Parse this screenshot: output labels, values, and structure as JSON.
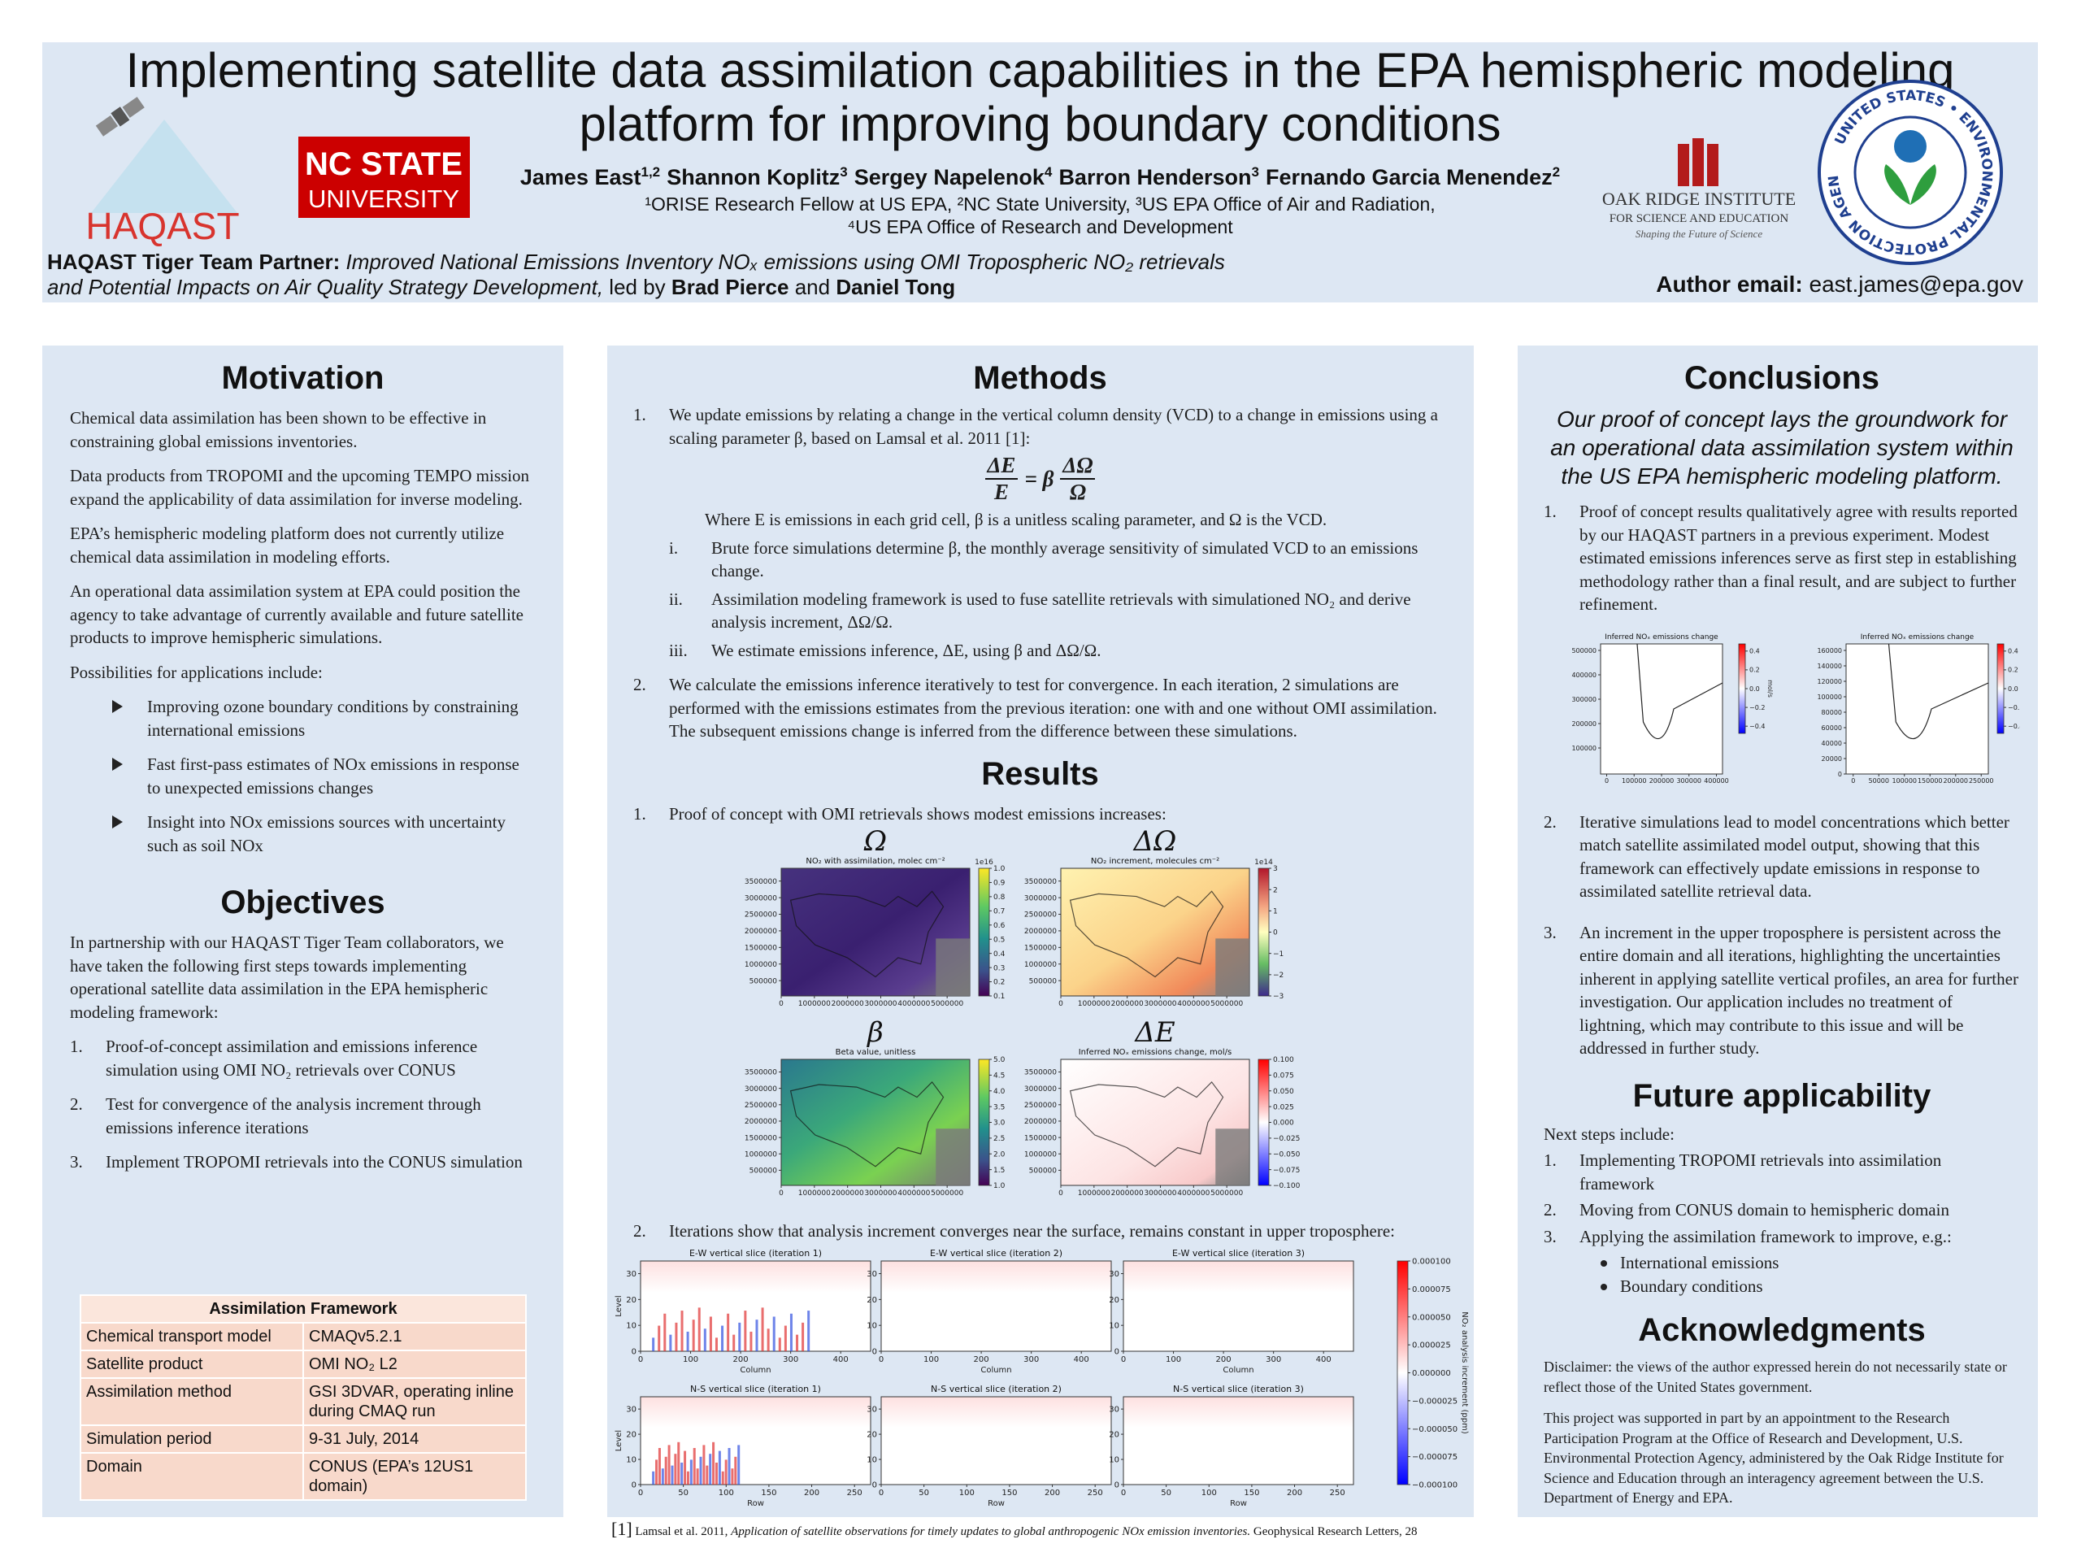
{
  "header": {
    "title_line1": "Implementing satellite data assimilation capabilities in the EPA hemispheric modeling",
    "title_line2": "platform for improving boundary conditions",
    "authors": [
      {
        "name": "James East",
        "sup": "1,2"
      },
      {
        "name": "Shannon Koplitz",
        "sup": "3"
      },
      {
        "name": "Sergey Napelenok",
        "sup": "4"
      },
      {
        "name": "Barron Henderson",
        "sup": "3"
      },
      {
        "name": "Fernando Garcia Menendez",
        "sup": "2"
      }
    ],
    "affiliations_line1": "¹ORISE Research Fellow at US EPA, ²NC State University, ³US EPA Office of Air and Radiation,",
    "affiliations_line2": "⁴US EPA Office of Research and Development",
    "partner_label": "HAQAST Tiger Team Partner:",
    "partner_project_line1": "Improved National Emissions Inventory NOₓ emissions using OMI Tropospheric NO₂ retrievals",
    "partner_project_line2": "and Potential Impacts on Air Quality Strategy Development,",
    "led_by": "led by",
    "lead1": "Brad Pierce",
    "and": "and",
    "lead2": "Daniel Tong",
    "email_label": "Author email:",
    "email": "east.james@epa.gov"
  },
  "logos": {
    "haqast": "HAQAST",
    "ncstate_line1": "NC STATE",
    "ncstate_line2": "UNIVERSITY",
    "orise_line1": "OAK RIDGE INSTITUTE",
    "orise_line2": "FOR SCIENCE AND EDUCATION",
    "orise_tagline": "Shaping the Future of Science",
    "epa_ring": "UNITED STATES • ENVIRONMENTAL PROTECTION AGENCY"
  },
  "motivation": {
    "heading": "Motivation",
    "paragraphs": [
      "Chemical data assimilation has been shown to be effective in constraining global emissions inventories.",
      "Data products from TROPOMI and the upcoming TEMPO mission expand the applicability of data assimilation for inverse modeling.",
      "EPA’s hemispheric modeling platform does not currently utilize chemical data assimilation in modeling efforts.",
      "An operational data assimilation system at EPA could position the agency to take advantage of currently available and future satellite products to improve hemispheric simulations.",
      "Possibilities for applications include:"
    ],
    "bullets": [
      "Improving ozone boundary conditions by constraining international emissions",
      "Fast first-pass estimates of NOx emissions in response to unexpected emissions changes",
      "Insight into NOx emissions sources with uncertainty such as soil NOx"
    ]
  },
  "objectives": {
    "heading": "Objectives",
    "intro": "In partnership with our HAQAST Tiger Team collaborators, we have taken the following first steps towards implementing operational satellite data assimilation in the EPA hemispheric modeling framework:",
    "items": [
      {
        "num": "1.",
        "text": "Proof-of-concept assimilation and emissions inference simulation using OMI NO₂ retrievals over CONUS"
      },
      {
        "num": "2.",
        "text": "Test for convergence of the analysis increment through emissions inference iterations"
      },
      {
        "num": "3.",
        "text": "Implement TROPOMI retrievals into the CONUS simulation"
      }
    ]
  },
  "table": {
    "title": "Assimilation Framework",
    "rows": [
      [
        "Chemical transport model",
        "CMAQv5.2.1"
      ],
      [
        "Satellite product",
        "OMI NO₂ L2"
      ],
      [
        "Assimilation method",
        "GSI 3DVAR, operating inline during CMAQ run"
      ],
      [
        "Simulation period",
        "9-31 July, 2014"
      ],
      [
        "Domain",
        "CONUS (EPA’s 12US1 domain)"
      ]
    ]
  },
  "methods": {
    "heading": "Methods",
    "step1": {
      "num": "1.",
      "text": "We update emissions by relating a change in the vertical column density (VCD) to a change in emissions using a scaling parameter β, based on Lamsal et al. 2011 [1]:"
    },
    "equation": {
      "lhs_num": "ΔE",
      "lhs_den": "E",
      "middle": "= β",
      "rhs_num": "ΔΩ",
      "rhs_den": "Ω"
    },
    "where": "Where E is emissions in each grid cell, β is a unitless scaling parameter, and Ω is the VCD.",
    "substeps": [
      {
        "num": "i.",
        "text": "Brute force simulations determine β, the monthly average sensitivity of simulated VCD to an emissions change."
      },
      {
        "num": "ii.",
        "text": "Assimilation modeling framework is used to fuse satellite retrievals with simulationed NO₂ and derive analysis increment, ΔΩ/Ω."
      },
      {
        "num": "iii.",
        "text": "We estimate emissions inference, ΔE, using β and ΔΩ/Ω."
      }
    ],
    "step2": {
      "num": "2.",
      "text": "We calculate the emissions inference iteratively to test for convergence. In each iteration, 2 simulations are performed with the emissions estimates from the previous iteration: one with and one without OMI assimilation. The subsequent emissions change is inferred from the difference between these simulations."
    }
  },
  "results": {
    "heading": "Results",
    "step1": {
      "num": "1.",
      "text": "Proof of concept with OMI retrievals shows modest emissions increases:"
    },
    "map_xticks": [
      "0",
      "1000000",
      "2000000",
      "3000000",
      "4000000",
      "5000000"
    ],
    "map_yticks": [
      "500000",
      "1000000",
      "1500000",
      "2000000",
      "2500000",
      "3000000",
      "3500000"
    ],
    "panels": [
      {
        "symbol": "Ω",
        "title": "NO₂ with assimilation, molec cm⁻²",
        "cbar_exp": "1e16",
        "cbar": [
          "1.0",
          "0.9",
          "0.8",
          "0.7",
          "0.6",
          "0.5",
          "0.4",
          "0.3",
          "0.2",
          "0.1"
        ]
      },
      {
        "symbol": "ΔΩ",
        "title": "NO₂ increment, molecules cm⁻²",
        "cbar_exp": "1e14",
        "cbar": [
          "3",
          "2",
          "1",
          "0",
          "−1",
          "−2",
          "−3"
        ]
      },
      {
        "symbol": "β",
        "title": "Beta value, unitless",
        "cbar": [
          "5.0",
          "4.5",
          "4.0",
          "3.5",
          "3.0",
          "2.5",
          "2.0",
          "1.5",
          "1.0"
        ]
      },
      {
        "symbol": "ΔE",
        "title": "Inferred NOₓ emissions change, mol/s",
        "cbar": [
          "0.100",
          "0.075",
          "0.050",
          "0.025",
          "0.000",
          "−0.025",
          "−0.050",
          "−0.075",
          "−0.100"
        ]
      }
    ],
    "step2": {
      "num": "2.",
      "text": "Iterations show that analysis increment converges near the surface, remains constant in upper troposphere:"
    },
    "slices": {
      "ew_titles": [
        "E-W vertical slice (iteration 1)",
        "E-W vertical slice (iteration 2)",
        "E-W vertical slice (iteration 3)"
      ],
      "ns_titles": [
        "N-S vertical slice (iteration 1)",
        "N-S vertical slice (iteration 2)",
        "N-S vertical slice (iteration 3)"
      ],
      "ew_xticks": [
        "0",
        "100",
        "200",
        "300",
        "400"
      ],
      "ns_xticks": [
        "0",
        "50",
        "100",
        "150",
        "200",
        "250"
      ],
      "yticks": [
        "0",
        "10",
        "20",
        "30"
      ],
      "ew_xlabel": "Column",
      "ns_xlabel": "Row",
      "ylabel": "Level",
      "cbar": [
        "0.000100",
        "0.000075",
        "0.000050",
        "0.000025",
        "0.000000",
        "−0.000025",
        "−0.000050",
        "−0.000075",
        "−0.000100"
      ],
      "cbar_label": "NO₂ analysis increment (ppm)"
    }
  },
  "conclusions": {
    "heading": "Conclusions",
    "lead": "Our proof of concept lays the groundwork for an operational data assimilation system within the US EPA hemispheric modeling platform.",
    "item1": {
      "num": "1.",
      "text": "Proof of concept results qualitatively agree with results reported by our HAQAST partners in a previous experiment. Modest estimated emissions inferences serve as first step in establishing methodology rather than a final result, and are subject to further refinement."
    },
    "maps": [
      {
        "title": "Inferred NOₓ emissions change",
        "xticks": [
          "0",
          "100000",
          "200000",
          "300000",
          "400000"
        ],
        "yticks": [
          "100000",
          "200000",
          "300000",
          "400000",
          "500000"
        ],
        "cbar": [
          "0.4",
          "0.2",
          "0.0",
          "−0.2",
          "−0.4"
        ],
        "cbar_label": "mol/s"
      },
      {
        "title": "Inferred NOₓ emissions change",
        "xticks": [
          "0",
          "50000",
          "100000",
          "150000",
          "200000",
          "250000"
        ],
        "yticks": [
          "0",
          "20000",
          "40000",
          "60000",
          "80000",
          "100000",
          "120000",
          "140000",
          "160000"
        ],
        "cbar": [
          "0.4",
          "0.2",
          "0.0",
          "−0.2",
          "−0.4"
        ],
        "cbar_label": "mol/s"
      }
    ],
    "items": [
      {
        "num": "2.",
        "text": "Iterative simulations lead to model concentrations which better match satellite assimilated model output, showing that this framework can effectively update emissions in response to assimilated satellite retrieval data."
      },
      {
        "num": "3.",
        "text": "An increment in the upper troposphere is persistent across the entire domain and all iterations, highlighting the uncertainties inherent in applying satellite vertical profiles, an area for further investigation. Our application includes no treatment of lightning, which may contribute to this issue and will be addressed in further study."
      }
    ]
  },
  "future": {
    "heading": "Future applicability",
    "intro": "Next steps include:",
    "items": [
      {
        "num": "1.",
        "text": "Implementing TROPOMI retrievals into assimilation framework"
      },
      {
        "num": "2.",
        "text": "Moving from CONUS domain to hemispheric domain"
      },
      {
        "num": "3.",
        "text": "Applying the assimilation framework to improve, e.g.:",
        "sub": [
          "International emissions",
          "Boundary conditions"
        ]
      }
    ]
  },
  "acknowledgments": {
    "heading": "Acknowledgments",
    "paragraphs": [
      "Disclaimer: the views of the author expressed herein do not necessarily state or reflect those of the United States government.",
      "This project was supported in part by an appointment to the Research Participation Program at the Office of Research and Development, U.S. Environmental Protection Agency, administered by the Oak Ridge Institute for Science and Education through an interagency agreement between the U.S. Department of Energy and EPA."
    ]
  },
  "reference": {
    "num": "[1]",
    "authors": "Lamsal et al. 2011,",
    "title": "Application of satellite observations for timely updates to global anthropogenic NOx emission inventories.",
    "journal": "Geophysical Research Letters, 28"
  }
}
